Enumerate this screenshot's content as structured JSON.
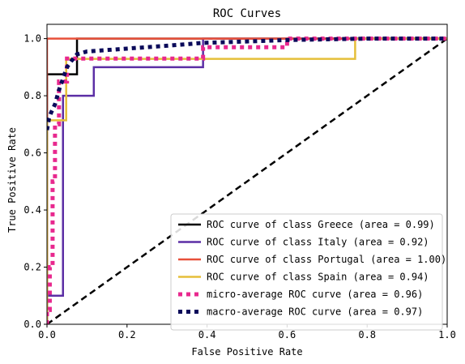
{
  "chart_data": {
    "type": "line",
    "title": "ROC Curves",
    "xlabel": "False Positive Rate",
    "ylabel": "True Positive Rate",
    "xlim": [
      0.0,
      1.0
    ],
    "ylim": [
      0.0,
      1.05
    ],
    "xticks": [
      "0.0",
      "0.2",
      "0.4",
      "0.6",
      "0.8",
      "1.0"
    ],
    "yticks": [
      "0.0",
      "0.2",
      "0.4",
      "0.6",
      "0.8",
      "1.0"
    ],
    "grid": false,
    "legend_position": "lower-right",
    "series": [
      {
        "name": "ROC curve of class Greece (area = 0.99)",
        "color": "#000000",
        "style": "solid",
        "x": [
          0.0,
          0.0,
          0.0,
          0.075,
          0.075,
          1.0
        ],
        "y": [
          0.0,
          0.875,
          0.875,
          0.875,
          1.0,
          1.0
        ]
      },
      {
        "name": "ROC curve of class Italy (area = 0.92)",
        "color": "#5c2fa5",
        "style": "solid",
        "x": [
          0.0,
          0.0,
          0.04,
          0.04,
          0.117,
          0.117,
          0.39,
          0.39,
          1.0
        ],
        "y": [
          0.0,
          0.1,
          0.1,
          0.8,
          0.8,
          0.9,
          0.9,
          1.0,
          1.0
        ]
      },
      {
        "name": "ROC curve of class Portugal (area = 1.00)",
        "color": "#e8503a",
        "style": "solid",
        "x": [
          0.0,
          0.0,
          1.0
        ],
        "y": [
          0.0,
          1.0,
          1.0
        ]
      },
      {
        "name": "ROC curve of class Spain (area = 0.94)",
        "color": "#e5bf3a",
        "style": "solid",
        "x": [
          0.0,
          0.0,
          0.048,
          0.048,
          0.77,
          0.77,
          1.0
        ],
        "y": [
          0.0,
          0.714,
          0.714,
          0.929,
          0.929,
          1.0,
          1.0
        ]
      },
      {
        "name": "micro-average ROC curve (area = 0.96)",
        "color": "#e8288e",
        "style": "dotted",
        "x": [
          0.0,
          0.0,
          0.007,
          0.007,
          0.014,
          0.014,
          0.02,
          0.02,
          0.03,
          0.03,
          0.05,
          0.05,
          0.39,
          0.39,
          0.6,
          0.6,
          1.0
        ],
        "y": [
          0.0,
          0.05,
          0.05,
          0.2,
          0.2,
          0.5,
          0.5,
          0.7,
          0.7,
          0.85,
          0.85,
          0.93,
          0.93,
          0.97,
          0.97,
          1.0,
          1.0
        ]
      },
      {
        "name": "macro-average ROC curve (area = 0.97)",
        "color": "#0a0a5a",
        "style": "dotted",
        "x": [
          0.0,
          0.005,
          0.01,
          0.02,
          0.03,
          0.04,
          0.05,
          0.06,
          0.075,
          0.1,
          0.15,
          0.2,
          0.3,
          0.39,
          0.5,
          0.6,
          0.8,
          1.0
        ],
        "y": [
          0.68,
          0.72,
          0.74,
          0.77,
          0.82,
          0.86,
          0.9,
          0.92,
          0.945,
          0.955,
          0.96,
          0.965,
          0.975,
          0.985,
          0.99,
          0.995,
          1.0,
          1.0
        ]
      },
      {
        "name": "",
        "color": "#000000",
        "style": "dashed",
        "x": [
          0.0,
          1.0
        ],
        "y": [
          0.0,
          1.0
        ]
      }
    ]
  }
}
